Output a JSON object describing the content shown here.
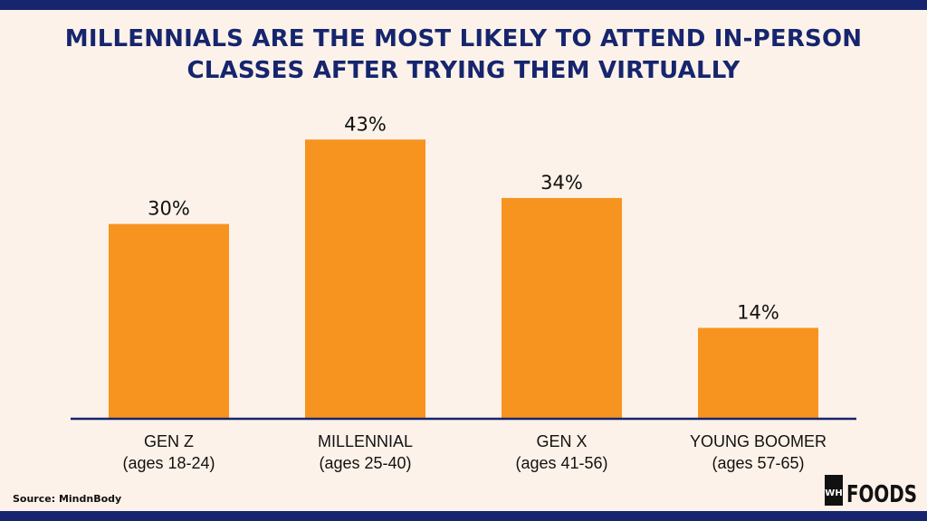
{
  "title": "MILLENNIALS ARE THE MOST LIKELY TO ATTEND IN-PERSON CLASSES AFTER TRYING THEM VIRTUALLY",
  "source": "Source: MindnBody",
  "logo": {
    "mark": "WH",
    "text": "FOODS"
  },
  "colors": {
    "bar": "#f79420",
    "axis": "#16256e",
    "title": "#16256e",
    "background": "#fdf2e9",
    "text": "#111111"
  },
  "chart_data": {
    "type": "bar",
    "title": "MILLENNIALS ARE THE MOST LIKELY TO ATTEND IN-PERSON CLASSES AFTER TRYING THEM VIRTUALLY",
    "categories": [
      {
        "name": "GEN Z",
        "sub": "(ages 18-24)"
      },
      {
        "name": "MILLENNIAL",
        "sub": "(ages 25-40)"
      },
      {
        "name": "GEN X",
        "sub": "(ages 41-56)"
      },
      {
        "name": "YOUNG BOOMER",
        "sub": "(ages 57-65)"
      }
    ],
    "values": [
      30,
      43,
      34,
      14
    ],
    "labels": [
      "30%",
      "43%",
      "34%",
      "14%"
    ],
    "unit": "%",
    "ylim": [
      0,
      50
    ],
    "grid": false,
    "legend": "none",
    "xlabel": "",
    "ylabel": ""
  }
}
